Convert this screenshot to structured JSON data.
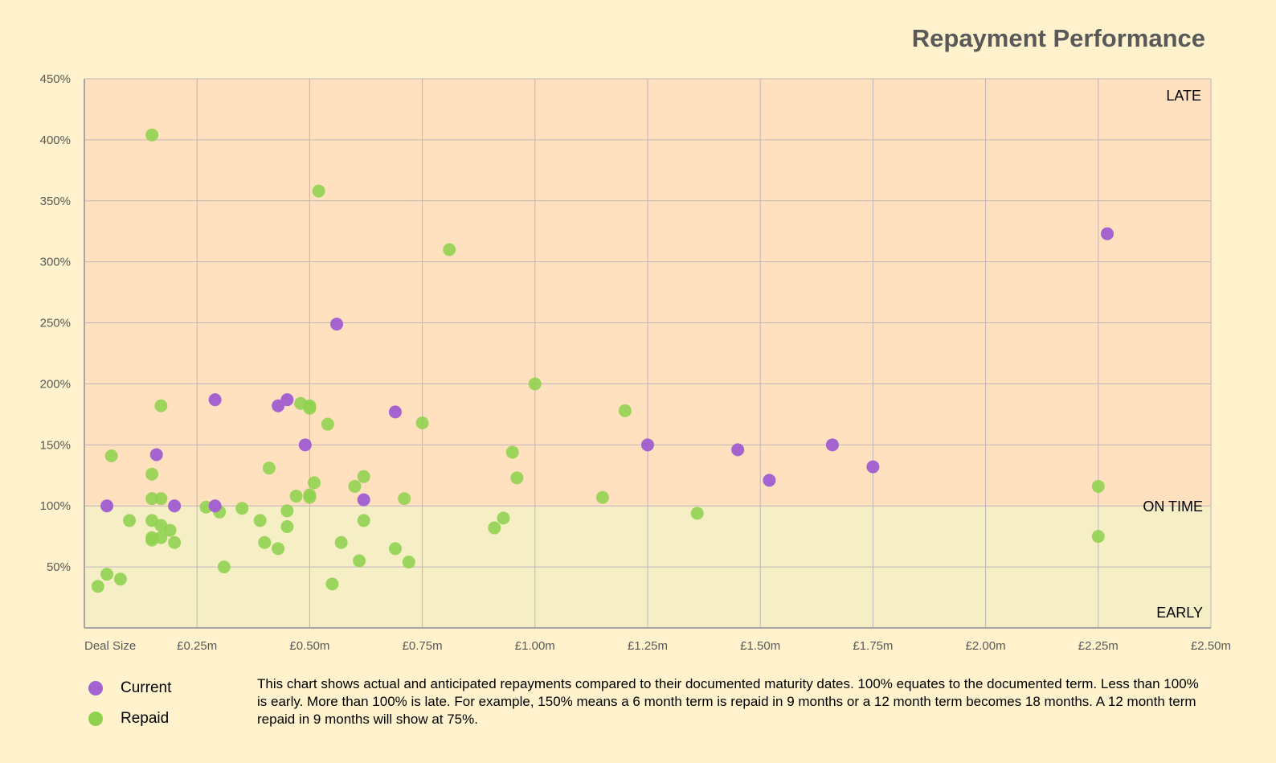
{
  "chart_data": {
    "type": "scatter",
    "title": "Repayment Performance",
    "xlabel": "Deal Size",
    "xlim": [
      0,
      2.5
    ],
    "ylim": [
      0,
      450
    ],
    "x_ticks": [
      0.25,
      0.5,
      0.75,
      1.0,
      1.25,
      1.5,
      1.75,
      2.0,
      2.25,
      2.5
    ],
    "x_tick_labels": [
      "£0.25m",
      "£0.50m",
      "£0.75m",
      "£1.00m",
      "£1.25m",
      "£1.50m",
      "£1.75m",
      "£2.00m",
      "£2.25m",
      "£2.50m"
    ],
    "y_ticks": [
      50,
      100,
      150,
      200,
      250,
      300,
      350,
      400,
      450
    ],
    "y_tick_labels": [
      "50%",
      "100%",
      "150%",
      "200%",
      "250%",
      "300%",
      "350%",
      "400%",
      "450%"
    ],
    "grid": true,
    "zones": [
      {
        "label": "LATE",
        "from": 100,
        "to": 450,
        "color": "#ffe0bf"
      },
      {
        "label": "ON TIME",
        "at": 100
      },
      {
        "label": "EARLY",
        "from": 0,
        "to": 100,
        "color": "#f6efc6"
      }
    ],
    "legend_placement": "bottom-left",
    "series": [
      {
        "name": "Current",
        "color": "#a463cf",
        "points": [
          [
            0.05,
            100
          ],
          [
            0.16,
            142
          ],
          [
            0.2,
            100
          ],
          [
            0.29,
            187
          ],
          [
            0.29,
            100
          ],
          [
            0.43,
            182
          ],
          [
            0.45,
            187
          ],
          [
            0.49,
            150
          ],
          [
            0.56,
            249
          ],
          [
            0.62,
            105
          ],
          [
            0.69,
            177
          ],
          [
            1.25,
            150
          ],
          [
            1.45,
            146
          ],
          [
            1.52,
            121
          ],
          [
            1.66,
            150
          ],
          [
            1.75,
            132
          ],
          [
            2.27,
            323
          ]
        ]
      },
      {
        "name": "Repaid",
        "color": "#8fd14f",
        "points": [
          [
            0.15,
            404
          ],
          [
            0.52,
            358
          ],
          [
            0.81,
            310
          ],
          [
            1.0,
            200
          ],
          [
            1.2,
            178
          ],
          [
            0.17,
            182
          ],
          [
            0.48,
            184
          ],
          [
            0.5,
            182
          ],
          [
            0.5,
            180
          ],
          [
            0.54,
            167
          ],
          [
            0.75,
            168
          ],
          [
            0.06,
            141
          ],
          [
            0.41,
            131
          ],
          [
            0.15,
            126
          ],
          [
            0.95,
            144
          ],
          [
            0.96,
            123
          ],
          [
            0.62,
            124
          ],
          [
            0.51,
            119
          ],
          [
            0.6,
            116
          ],
          [
            2.25,
            116
          ],
          [
            1.15,
            107
          ],
          [
            0.47,
            108
          ],
          [
            0.5,
            109
          ],
          [
            0.5,
            107
          ],
          [
            0.71,
            106
          ],
          [
            0.15,
            106
          ],
          [
            0.17,
            106
          ],
          [
            0.27,
            99
          ],
          [
            0.3,
            95
          ],
          [
            0.35,
            98
          ],
          [
            0.45,
            96
          ],
          [
            1.36,
            94
          ],
          [
            0.1,
            88
          ],
          [
            0.15,
            88
          ],
          [
            0.17,
            84
          ],
          [
            0.39,
            88
          ],
          [
            0.62,
            88
          ],
          [
            0.93,
            90
          ],
          [
            0.91,
            82
          ],
          [
            0.45,
            83
          ],
          [
            0.19,
            80
          ],
          [
            0.15,
            74
          ],
          [
            0.17,
            74
          ],
          [
            0.15,
            72
          ],
          [
            0.2,
            70
          ],
          [
            0.4,
            70
          ],
          [
            0.57,
            70
          ],
          [
            0.43,
            65
          ],
          [
            0.69,
            65
          ],
          [
            2.25,
            75
          ],
          [
            0.61,
            55
          ],
          [
            0.72,
            54
          ],
          [
            0.31,
            50
          ],
          [
            0.05,
            44
          ],
          [
            0.08,
            40
          ],
          [
            0.03,
            34
          ],
          [
            0.55,
            36
          ]
        ]
      }
    ]
  },
  "note": "This chart shows actual and anticipated repayments compared to their documented maturity dates.  100% equates to the documented term.  Less than 100% is early.  More than 100% is late.  For example, 150% means a 6 month term is repaid in 9 months or a 12 month term becomes 18 months.  A 12 month term repaid in 9 months will show at 75%."
}
